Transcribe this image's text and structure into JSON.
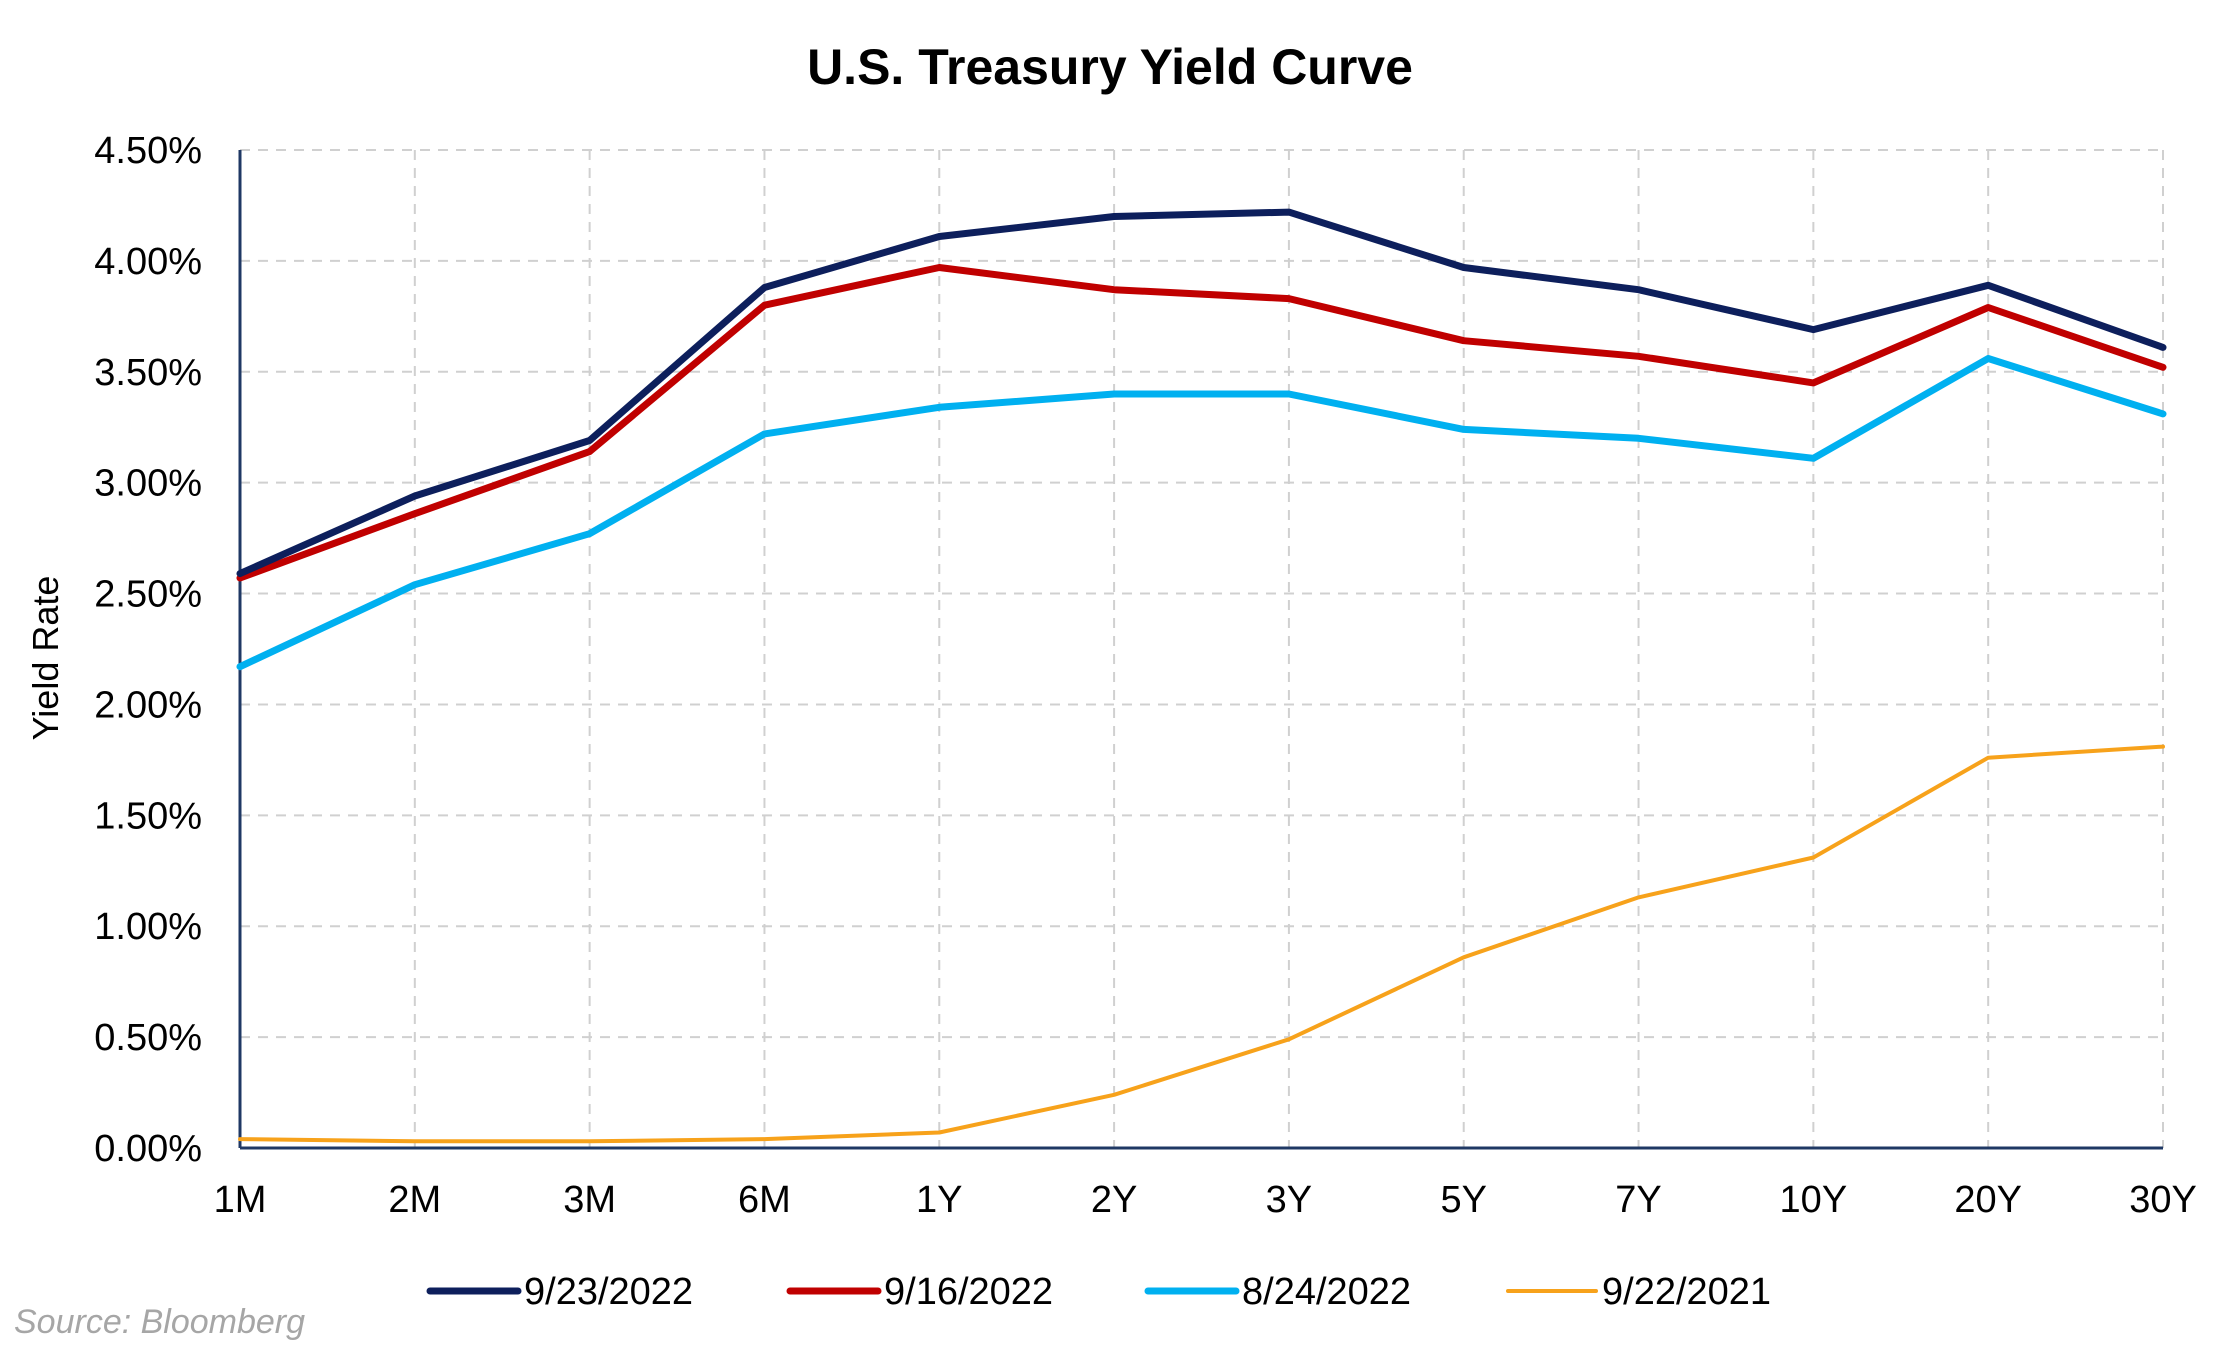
{
  "chart_data": {
    "type": "line",
    "title": "U.S. Treasury Yield Curve",
    "xlabel": "",
    "ylabel": "Yield Rate",
    "categories": [
      "1M",
      "2M",
      "3M",
      "6M",
      "1Y",
      "2Y",
      "3Y",
      "5Y",
      "7Y",
      "10Y",
      "20Y",
      "30Y"
    ],
    "ylim": [
      0,
      4.5
    ],
    "yticks": [
      "0.00%",
      "0.50%",
      "1.00%",
      "1.50%",
      "2.00%",
      "2.50%",
      "3.00%",
      "3.50%",
      "4.00%",
      "4.50%"
    ],
    "grid": true,
    "legend_position": "bottom",
    "series": [
      {
        "name": "9/23/2022",
        "color": "#0d1f5c",
        "values": [
          2.59,
          2.94,
          3.19,
          3.88,
          4.11,
          4.2,
          4.22,
          3.97,
          3.87,
          3.69,
          3.89,
          3.61
        ]
      },
      {
        "name": "9/16/2022",
        "color": "#c00000",
        "values": [
          2.57,
          2.86,
          3.14,
          3.8,
          3.97,
          3.87,
          3.83,
          3.64,
          3.57,
          3.45,
          3.79,
          3.52
        ]
      },
      {
        "name": "8/24/2022",
        "color": "#00b0f0",
        "values": [
          2.17,
          2.54,
          2.77,
          3.22,
          3.34,
          3.4,
          3.4,
          3.24,
          3.2,
          3.11,
          3.56,
          3.31
        ]
      },
      {
        "name": "9/22/2021",
        "color": "#f7a21b",
        "values": [
          0.04,
          0.03,
          0.03,
          0.04,
          0.07,
          0.24,
          0.49,
          0.86,
          1.13,
          1.31,
          1.76,
          1.81
        ]
      }
    ]
  },
  "source": "Source: Bloomberg"
}
